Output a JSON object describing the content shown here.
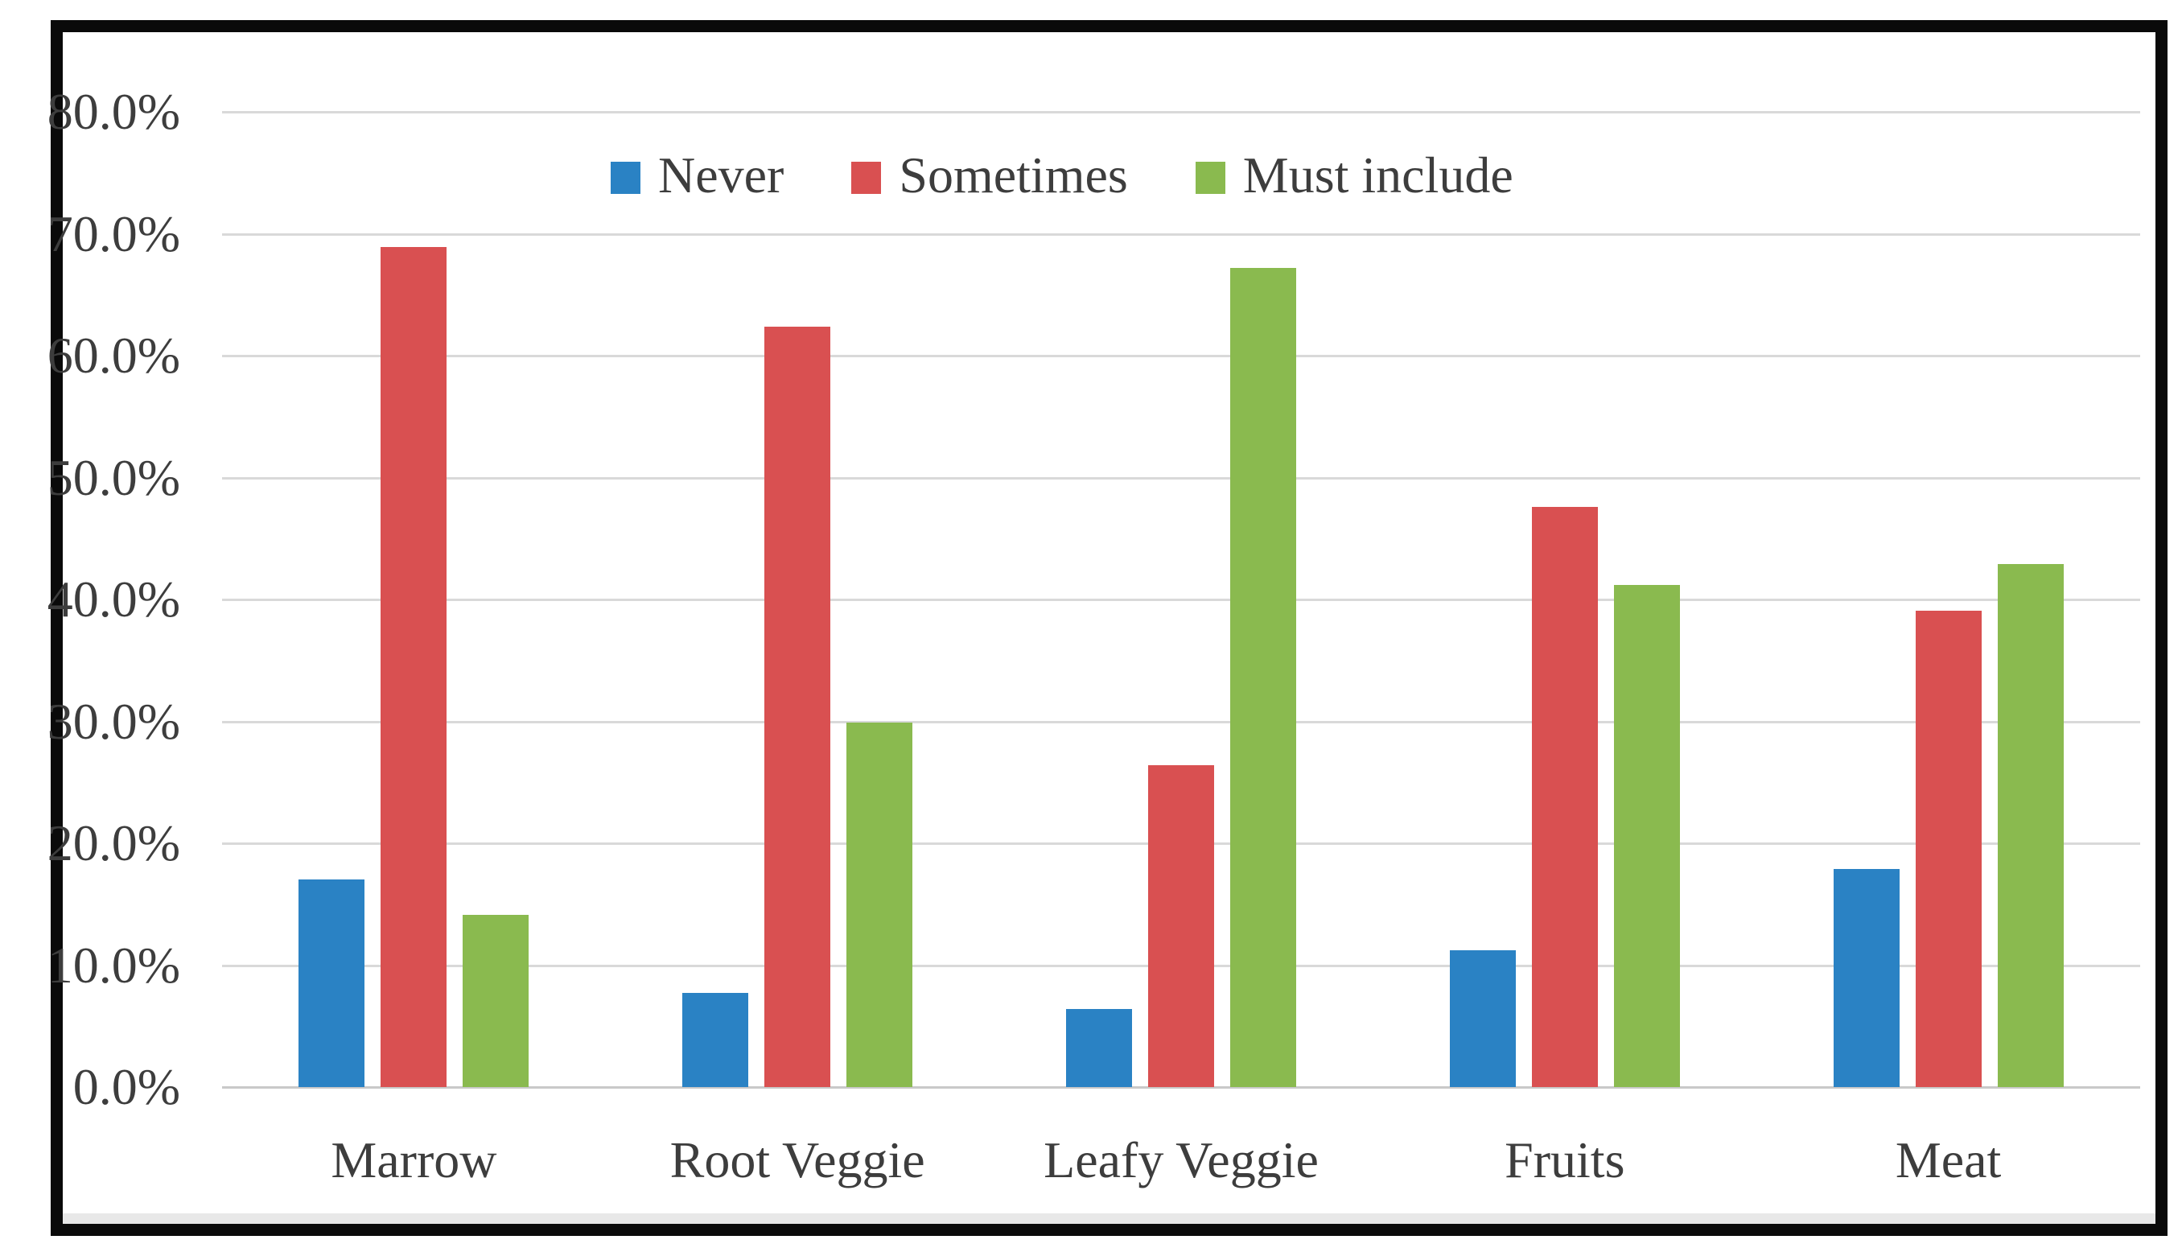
{
  "chart_data": {
    "type": "bar",
    "title": "",
    "xlabel": "",
    "ylabel": "",
    "categories": [
      "Marrow",
      "Root Veggie",
      "Leafy Veggie",
      "Fruits",
      "Meat"
    ],
    "series": [
      {
        "name": "Never",
        "color": "#2a82c4",
        "values": [
          17.0,
          7.7,
          6.4,
          11.2,
          17.9
        ]
      },
      {
        "name": "Sometimes",
        "color": "#d95051",
        "values": [
          68.9,
          62.4,
          26.4,
          47.6,
          39.1
        ]
      },
      {
        "name": "Must include",
        "color": "#8aba4f",
        "values": [
          14.1,
          29.9,
          67.2,
          41.2,
          42.9
        ]
      }
    ],
    "ylim": [
      0,
      80
    ],
    "ytick_step": 10,
    "ytick_labels": [
      "0.0%",
      "10.0%",
      "20.0%",
      "30.0%",
      "40.0%",
      "50.0%",
      "60.0%",
      "70.0%",
      "80.0%"
    ],
    "grid": true,
    "legend_position": "top-center",
    "value_format": "percent"
  },
  "colors": {
    "background": "#ffffff",
    "frame": "#0a0a0a",
    "gridline": "#d9d9d9",
    "baseline": "#c9c9c9",
    "axis_text": "#3d3d3d",
    "bottom_strip": "#e8e8e8"
  }
}
